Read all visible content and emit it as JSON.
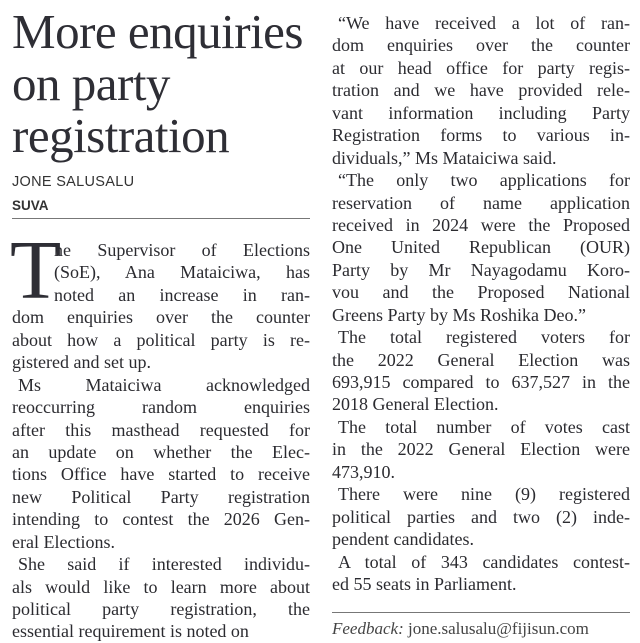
{
  "headline": [
    "More enquiries",
    "on party",
    "registration"
  ],
  "byline": "JONE SALUSALU",
  "dateline": "SUVA",
  "drop_cap": "T",
  "left": {
    "paragraphs": [
      {
        "lines": [
          "he Supervisor of Elections",
          "(SoE), Ana Mataiciwa, has",
          "noted an increase in ran-",
          "dom enquiries over the counter",
          "about how a political party is re-",
          "gistered and set up."
        ]
      },
      {
        "lines": [
          "Ms Mataiciwa acknowledged",
          "reoccurring random enquiries",
          "after this masthead requested for",
          "an update on whether the Elec-",
          "tions Office have started to receive",
          "new Political Party registration",
          "intending to contest the 2026 Gen-",
          "eral Elections."
        ]
      },
      {
        "lines": [
          "She said if interested individu-",
          "als would like to learn more about",
          "political party registration, the",
          "essential requirement is noted on"
        ]
      }
    ]
  },
  "right": {
    "paragraphs": [
      {
        "lines": [
          "“We have received a lot of ran-",
          "dom enquiries over the counter",
          "at our head office for party regis-",
          "tration and we have provided rele-",
          "vant information including Party",
          "Registration forms to various in-",
          "dividuals,” Ms Mataiciwa said."
        ]
      },
      {
        "lines": [
          "“The only two applications for",
          "reservation of name application",
          "received in 2024 were the Proposed",
          "One United Republican (OUR)",
          "Party by Mr Nayagodamu Koro-",
          "vou and the Proposed National",
          "Greens Party by Ms Roshika Deo.”"
        ]
      },
      {
        "lines": [
          "The total registered voters for",
          "the 2022 General Election was",
          "693,915 compared to 637,527 in the",
          "2018 General Election."
        ]
      },
      {
        "lines": [
          "The total number of votes cast",
          "in the 2022 General Election were",
          "473,910."
        ]
      },
      {
        "lines": [
          "There were nine (9) registered",
          "political parties and two (2) inde-",
          "pendent candidates."
        ]
      },
      {
        "lines": [
          "A total of 343 candidates contest-",
          "ed 55 seats in Parliament."
        ]
      }
    ]
  },
  "feedback": {
    "label": "Feedback:",
    "email": "jone.salusalu@fijisun.com"
  }
}
